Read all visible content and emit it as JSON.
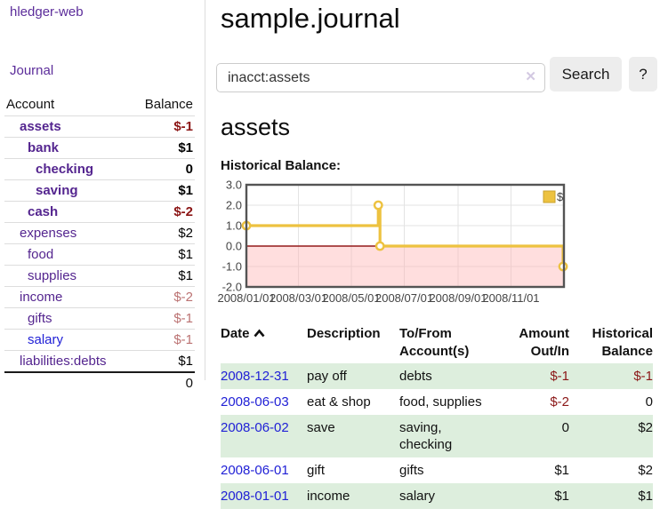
{
  "sidebar": {
    "app_title": "hledger-web",
    "journal_label": "Journal",
    "accounts_table": {
      "headers": {
        "account": "Account",
        "balance": "Balance"
      },
      "rows": [
        {
          "name": "assets",
          "indent": 1,
          "bold": true,
          "balance": "$-1",
          "negative": true,
          "unvisited": false
        },
        {
          "name": "bank",
          "indent": 2,
          "bold": true,
          "balance": "$1",
          "negative": false,
          "unvisited": false
        },
        {
          "name": "checking",
          "indent": 3,
          "bold": true,
          "balance": "0",
          "negative": false,
          "unvisited": false
        },
        {
          "name": "saving",
          "indent": 3,
          "bold": true,
          "balance": "$1",
          "negative": false,
          "unvisited": false
        },
        {
          "name": "cash",
          "indent": 2,
          "bold": true,
          "balance": "$-2",
          "negative": true,
          "unvisited": false
        },
        {
          "name": "expenses",
          "indent": 1,
          "bold": false,
          "balance": "$2",
          "negative": false,
          "unvisited": false
        },
        {
          "name": "food",
          "indent": 2,
          "bold": false,
          "balance": "$1",
          "negative": false,
          "unvisited": false
        },
        {
          "name": "supplies",
          "indent": 2,
          "bold": false,
          "balance": "$1",
          "negative": false,
          "unvisited": false
        },
        {
          "name": "income",
          "indent": 1,
          "bold": false,
          "balance": "$-2",
          "negative": true,
          "unvisited": false
        },
        {
          "name": "gifts",
          "indent": 2,
          "bold": false,
          "balance": "$-1",
          "negative": true,
          "unvisited": false
        },
        {
          "name": "salary",
          "indent": 2,
          "bold": false,
          "balance": "$-1",
          "negative": true,
          "unvisited": true
        },
        {
          "name": "liabilities:debts",
          "indent": 1,
          "bold": false,
          "balance": "$1",
          "negative": false,
          "unvisited": false
        }
      ],
      "total": "0"
    }
  },
  "main": {
    "title": "sample.journal",
    "search": {
      "value": "inacct:assets",
      "clear_icon": "✕",
      "search_button": "Search",
      "help_button": "?"
    },
    "account_heading": "assets",
    "chart_label": "Historical Balance:"
  },
  "chart_data": {
    "type": "line",
    "title": "Historical Balance",
    "step": "after",
    "series": [
      {
        "name": "$",
        "points": [
          {
            "date": "2008-01-01",
            "value": 1
          },
          {
            "date": "2008-06-01",
            "value": 2
          },
          {
            "date": "2008-06-03",
            "value": 0
          },
          {
            "date": "2008-12-31",
            "value": -1
          }
        ]
      }
    ],
    "x_range": [
      "2008-01-01",
      "2009-01-01"
    ],
    "x_ticks": [
      {
        "date": "2008-01-01",
        "label": "2008/01/01"
      },
      {
        "date": "2008-03-01",
        "label": "2008/03/01"
      },
      {
        "date": "2008-05-01",
        "label": "2008/05/01"
      },
      {
        "date": "2008-07-01",
        "label": "2008/07/01"
      },
      {
        "date": "2008-09-01",
        "label": "2008/09/01"
      },
      {
        "date": "2008-11-01",
        "label": "2008/11/01"
      }
    ],
    "y_ticks": [
      3.0,
      2.0,
      1.0,
      0.0,
      -1.0,
      -2.0
    ],
    "ylim": [
      -2,
      3
    ],
    "legend": {
      "label": "$",
      "position": "top-right"
    },
    "grid": true,
    "colors": {
      "line": "#edc240",
      "marker_fill": "#ffffff",
      "negative_fill": "#ffb0b0",
      "zero_line": "#941a1a",
      "border": "#545454",
      "gridline": "#e3e3e3"
    }
  },
  "register_table": {
    "headers": {
      "date": "Date",
      "description": "Description",
      "account": "To/From Account(s)",
      "amount": "Amount Out/In",
      "balance": "Historical Balance"
    },
    "rows": [
      {
        "date": "2008-12-31",
        "description": "pay off",
        "account": "debts",
        "amount": "$-1",
        "amount_negative": true,
        "balance": "$-1",
        "balance_negative": true
      },
      {
        "date": "2008-06-03",
        "description": "eat & shop",
        "account": "food, supplies",
        "amount": "$-2",
        "amount_negative": true,
        "balance": "0",
        "balance_negative": false
      },
      {
        "date": "2008-06-02",
        "description": "save",
        "account": "saving, checking",
        "amount": "0",
        "amount_negative": false,
        "balance": "$2",
        "balance_negative": false
      },
      {
        "date": "2008-06-01",
        "description": "gift",
        "account": "gifts",
        "amount": "$1",
        "amount_negative": false,
        "balance": "$2",
        "balance_negative": false
      },
      {
        "date": "2008-01-01",
        "description": "income",
        "account": "salary",
        "amount": "$1",
        "amount_negative": false,
        "balance": "$1",
        "balance_negative": false
      }
    ]
  }
}
